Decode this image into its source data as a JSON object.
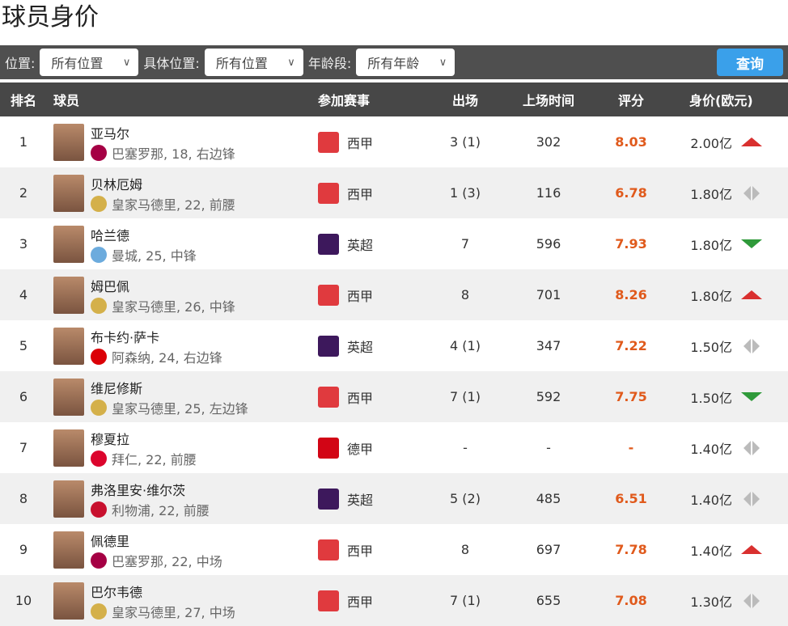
{
  "title": "球员身价",
  "filters": {
    "position_label": "位置:",
    "position_value": "所有位置",
    "detail_label": "具体位置:",
    "detail_value": "所有位置",
    "age_label": "年龄段:",
    "age_value": "所有年龄",
    "query_button": "查询"
  },
  "columns": {
    "rank": "排名",
    "player": "球员",
    "league": "参加赛事",
    "apps": "出场",
    "minutes": "上场时间",
    "rating": "评分",
    "value": "身价(欧元)"
  },
  "colors": {
    "up": "#d9302f",
    "down": "#2f9a3a",
    "same": "#bbbbbb",
    "rating": "#e05a1c",
    "accent": "#3aa0ea"
  },
  "rows": [
    {
      "rank": "1",
      "name": "亚马尔",
      "info": "巴塞罗那, 18, 右边锋",
      "club_color": "#a50044",
      "league": "西甲",
      "league_icon": "laliga-icon",
      "apps": "3 (1)",
      "minutes": "302",
      "rating": "8.03",
      "value": "2.00亿",
      "trend": "up"
    },
    {
      "rank": "2",
      "name": "贝林厄姆",
      "info": "皇家马德里, 22, 前腰",
      "club_color": "#d4b04a",
      "league": "西甲",
      "league_icon": "laliga-icon",
      "apps": "1 (3)",
      "minutes": "116",
      "rating": "6.78",
      "value": "1.80亿",
      "trend": "same"
    },
    {
      "rank": "3",
      "name": "哈兰德",
      "info": "曼城, 25, 中锋",
      "club_color": "#6cabdd",
      "league": "英超",
      "league_icon": "premier-league-icon",
      "apps": "7",
      "minutes": "596",
      "rating": "7.93",
      "value": "1.80亿",
      "trend": "down"
    },
    {
      "rank": "4",
      "name": "姆巴佩",
      "info": "皇家马德里, 26, 中锋",
      "club_color": "#d4b04a",
      "league": "西甲",
      "league_icon": "laliga-icon",
      "apps": "8",
      "minutes": "701",
      "rating": "8.26",
      "value": "1.80亿",
      "trend": "up"
    },
    {
      "rank": "5",
      "name": "布卡约·萨卡",
      "info": "阿森纳, 24, 右边锋",
      "club_color": "#db0007",
      "league": "英超",
      "league_icon": "premier-league-icon",
      "apps": "4 (1)",
      "minutes": "347",
      "rating": "7.22",
      "value": "1.50亿",
      "trend": "same"
    },
    {
      "rank": "6",
      "name": "维尼修斯",
      "info": "皇家马德里, 25, 左边锋",
      "club_color": "#d4b04a",
      "league": "西甲",
      "league_icon": "laliga-icon",
      "apps": "7 (1)",
      "minutes": "592",
      "rating": "7.75",
      "value": "1.50亿",
      "trend": "down"
    },
    {
      "rank": "7",
      "name": "穆夏拉",
      "info": "拜仁, 22, 前腰",
      "club_color": "#dc052d",
      "league": "德甲",
      "league_icon": "bundesliga-icon",
      "apps": "-",
      "minutes": "-",
      "rating": "-",
      "value": "1.40亿",
      "trend": "same"
    },
    {
      "rank": "8",
      "name": "弗洛里安·维尔茨",
      "info": "利物浦, 22, 前腰",
      "club_color": "#c8102e",
      "league": "英超",
      "league_icon": "premier-league-icon",
      "apps": "5 (2)",
      "minutes": "485",
      "rating": "6.51",
      "value": "1.40亿",
      "trend": "same"
    },
    {
      "rank": "9",
      "name": "佩德里",
      "info": "巴塞罗那, 22, 中场",
      "club_color": "#a50044",
      "league": "西甲",
      "league_icon": "laliga-icon",
      "apps": "8",
      "minutes": "697",
      "rating": "7.78",
      "value": "1.40亿",
      "trend": "up"
    },
    {
      "rank": "10",
      "name": "巴尔韦德",
      "info": "皇家马德里, 27, 中场",
      "club_color": "#d4b04a",
      "league": "西甲",
      "league_icon": "laliga-icon",
      "apps": "7 (1)",
      "minutes": "655",
      "rating": "7.08",
      "value": "1.30亿",
      "trend": "same"
    }
  ]
}
